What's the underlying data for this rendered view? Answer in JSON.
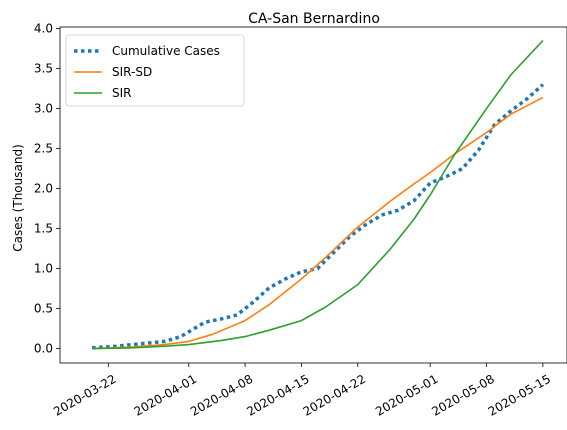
{
  "chart_data": {
    "type": "line",
    "title": "CA-San Bernardino",
    "xlabel": "",
    "ylabel": "Cases (Thousand)",
    "xlim": [
      "2020-03-16",
      "2020-05-18"
    ],
    "ylim": [
      -0.18,
      4.02
    ],
    "x_ticks": [
      "2020-03-22",
      "2020-04-01",
      "2020-04-08",
      "2020-04-15",
      "2020-04-22",
      "2020-05-01",
      "2020-05-08",
      "2020-05-15"
    ],
    "y_ticks": [
      "0.0",
      "0.5",
      "1.0",
      "1.5",
      "2.0",
      "2.5",
      "3.0",
      "3.5",
      "4.0"
    ],
    "grid": false,
    "legend_position": "top-left",
    "series": [
      {
        "name": "Cumulative Cases",
        "color": "#1f77b4",
        "style": "dotted",
        "x": [
          "2020-03-20",
          "2020-03-23",
          "2020-03-26",
          "2020-03-29",
          "2020-03-31",
          "2020-04-02",
          "2020-04-03",
          "2020-04-05",
          "2020-04-07",
          "2020-04-09",
          "2020-04-11",
          "2020-04-13",
          "2020-04-15",
          "2020-04-17",
          "2020-04-19",
          "2020-04-21",
          "2020-04-23",
          "2020-04-25",
          "2020-04-27",
          "2020-04-29",
          "2020-05-01",
          "2020-05-03",
          "2020-05-05",
          "2020-05-07",
          "2020-05-09",
          "2020-05-11",
          "2020-05-13",
          "2020-05-15"
        ],
        "values": [
          0.01,
          0.03,
          0.06,
          0.09,
          0.15,
          0.27,
          0.33,
          0.37,
          0.42,
          0.58,
          0.76,
          0.87,
          0.96,
          1.0,
          1.2,
          1.4,
          1.55,
          1.67,
          1.73,
          1.85,
          2.07,
          2.15,
          2.25,
          2.48,
          2.8,
          2.97,
          3.12,
          3.3
        ]
      },
      {
        "name": "SIR-SD",
        "color": "#ff7f0e",
        "style": "solid",
        "x": [
          "2020-03-20",
          "2020-03-25",
          "2020-03-29",
          "2020-04-01",
          "2020-04-04",
          "2020-04-08",
          "2020-04-11",
          "2020-04-15",
          "2020-04-18",
          "2020-04-22",
          "2020-04-26",
          "2020-04-29",
          "2020-05-01",
          "2020-05-04",
          "2020-05-08",
          "2020-05-11",
          "2020-05-15"
        ],
        "values": [
          0.0,
          0.02,
          0.05,
          0.09,
          0.18,
          0.35,
          0.55,
          0.87,
          1.14,
          1.52,
          1.84,
          2.06,
          2.2,
          2.43,
          2.7,
          2.93,
          3.14
        ]
      },
      {
        "name": "SIR",
        "color": "#2ca02c",
        "style": "solid",
        "x": [
          "2020-03-20",
          "2020-03-25",
          "2020-03-29",
          "2020-04-01",
          "2020-04-05",
          "2020-04-08",
          "2020-04-11",
          "2020-04-15",
          "2020-04-18",
          "2020-04-22",
          "2020-04-26",
          "2020-04-29",
          "2020-05-01",
          "2020-05-04",
          "2020-05-08",
          "2020-05-11",
          "2020-05-15"
        ],
        "values": [
          0.0,
          0.01,
          0.03,
          0.05,
          0.1,
          0.15,
          0.23,
          0.35,
          0.52,
          0.8,
          1.24,
          1.62,
          1.92,
          2.42,
          3.0,
          3.42,
          3.85
        ]
      }
    ]
  }
}
